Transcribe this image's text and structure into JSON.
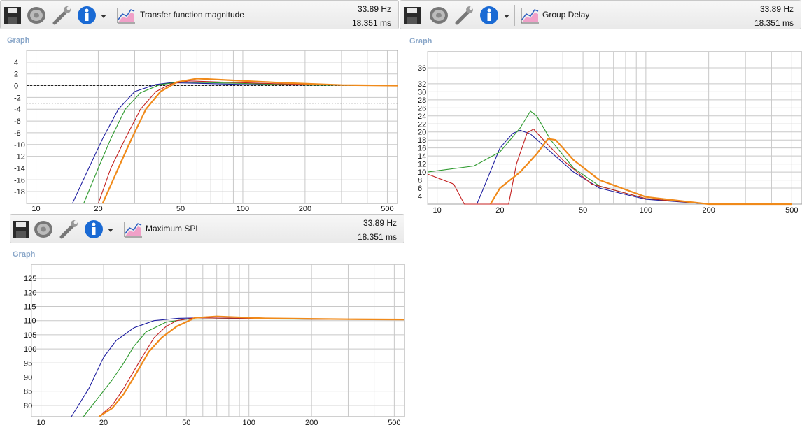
{
  "panels": {
    "transfer": {
      "title": "Transfer function magnitude",
      "freq": "33.89 Hz",
      "time": "18.351 ms",
      "graph_label": "Graph"
    },
    "group_delay": {
      "title": "Group Delay",
      "freq": "33.89 Hz",
      "time": "18.351 ms",
      "graph_label": "Graph"
    },
    "max_spl": {
      "title": "Maximum SPL",
      "freq": "33.89 Hz",
      "time": "18.351 ms",
      "graph_label": "Graph"
    }
  },
  "colors": {
    "blue": "#1f1fa0",
    "green": "#2e9a2e",
    "red": "#c42020",
    "orange": "#f08a1a",
    "grid": "#c8c8c8"
  },
  "icons": [
    "save-icon",
    "speaker-icon",
    "wrench-icon",
    "info-icon",
    "dropdown-icon",
    "chart-icon"
  ],
  "chart_data": [
    {
      "type": "line",
      "name": "transfer",
      "xlog": true,
      "xlim": [
        9,
        560
      ],
      "ylim": [
        -20,
        6
      ],
      "x_ticks": [
        10,
        20,
        50,
        100,
        200,
        500
      ],
      "y_ticks": [
        4,
        2,
        0,
        -2,
        -4,
        -6,
        -8,
        -10,
        -12,
        -14,
        -16,
        -18
      ],
      "ref_lines": [
        0,
        -3
      ],
      "series": [
        {
          "color": "blue",
          "points": [
            [
              15,
              -20
            ],
            [
              18,
              -14
            ],
            [
              21,
              -9
            ],
            [
              25,
              -4
            ],
            [
              30,
              -1
            ],
            [
              38,
              0.2
            ],
            [
              45,
              0.5
            ],
            [
              60,
              0.4
            ],
            [
              100,
              0.2
            ],
            [
              200,
              0.1
            ],
            [
              500,
              0
            ]
          ]
        },
        {
          "color": "green",
          "points": [
            [
              17,
              -20
            ],
            [
              20,
              -14
            ],
            [
              23,
              -9
            ],
            [
              27,
              -4
            ],
            [
              32,
              -1.2
            ],
            [
              40,
              0.2
            ],
            [
              50,
              0.6
            ],
            [
              70,
              0.5
            ],
            [
              120,
              0.3
            ],
            [
              200,
              0.1
            ],
            [
              500,
              0
            ]
          ]
        },
        {
          "color": "red",
          "points": [
            [
              20,
              -20
            ],
            [
              23,
              -14
            ],
            [
              27,
              -9
            ],
            [
              32,
              -4
            ],
            [
              38,
              -1
            ],
            [
              45,
              0.3
            ],
            [
              55,
              0.8
            ],
            [
              80,
              0.6
            ],
            [
              150,
              0.3
            ],
            [
              300,
              0.1
            ],
            [
              500,
              0
            ]
          ]
        },
        {
          "color": "orange",
          "points": [
            [
              21,
              -20
            ],
            [
              25,
              -14
            ],
            [
              29,
              -9
            ],
            [
              34,
              -4
            ],
            [
              40,
              -1
            ],
            [
              48,
              0.6
            ],
            [
              60,
              1.2
            ],
            [
              90,
              0.9
            ],
            [
              150,
              0.5
            ],
            [
              300,
              0.1
            ],
            [
              560,
              0
            ]
          ]
        }
      ]
    },
    {
      "type": "line",
      "name": "group_delay",
      "xlog": true,
      "xlim": [
        9,
        560
      ],
      "ylim": [
        2,
        40
      ],
      "x_ticks": [
        10,
        20,
        50,
        100,
        200,
        500
      ],
      "y_ticks": [
        4,
        6,
        8,
        10,
        12,
        14,
        16,
        18,
        20,
        22,
        24,
        26,
        28,
        30,
        32,
        36
      ],
      "series": [
        {
          "color": "blue",
          "points": [
            [
              15.5,
              0
            ],
            [
              17,
              7
            ],
            [
              20,
              16
            ],
            [
              23,
              19.6
            ],
            [
              25,
              20.4
            ],
            [
              28,
              19.5
            ],
            [
              35,
              15
            ],
            [
              45,
              10
            ],
            [
              60,
              6
            ],
            [
              100,
              3.2
            ],
            [
              200,
              1.8
            ],
            [
              500,
              1.5
            ]
          ]
        },
        {
          "color": "green",
          "points": [
            [
              9,
              10
            ],
            [
              15,
              11.5
            ],
            [
              20,
              15
            ],
            [
              25,
              21
            ],
            [
              28,
              25.2
            ],
            [
              30,
              24
            ],
            [
              35,
              18
            ],
            [
              45,
              11
            ],
            [
              60,
              6.5
            ],
            [
              100,
              3.4
            ],
            [
              200,
              1.9
            ],
            [
              500,
              1.5
            ]
          ]
        },
        {
          "color": "red",
          "points": [
            [
              9,
              9.5
            ],
            [
              12,
              7
            ],
            [
              13.5,
              0
            ],
            [
              22,
              0
            ],
            [
              24,
              12
            ],
            [
              27,
              19.8
            ],
            [
              29,
              20.7
            ],
            [
              33,
              17.5
            ],
            [
              40,
              13
            ],
            [
              55,
              7
            ],
            [
              100,
              3.4
            ],
            [
              200,
              1.9
            ],
            [
              500,
              1.5
            ]
          ]
        },
        {
          "color": "orange",
          "points": [
            [
              18,
              0
            ],
            [
              20,
              6
            ],
            [
              25,
              10
            ],
            [
              30,
              14.5
            ],
            [
              34,
              18.3
            ],
            [
              37,
              18
            ],
            [
              45,
              13
            ],
            [
              60,
              8
            ],
            [
              100,
              3.8
            ],
            [
              200,
              2
            ],
            [
              500,
              1.5
            ]
          ]
        }
      ]
    },
    {
      "type": "line",
      "name": "max_spl",
      "xlog": true,
      "xlim": [
        9,
        560
      ],
      "ylim": [
        76,
        130
      ],
      "x_ticks": [
        10,
        20,
        50,
        100,
        200,
        500
      ],
      "y_ticks": [
        125,
        120,
        115,
        110,
        105,
        100,
        95,
        90,
        85,
        80
      ],
      "series": [
        {
          "color": "blue",
          "points": [
            [
              14,
              72
            ],
            [
              17,
              86
            ],
            [
              20,
              97
            ],
            [
              23,
              103
            ],
            [
              28,
              107.5
            ],
            [
              35,
              110
            ],
            [
              45,
              110.8
            ],
            [
              60,
              111
            ],
            [
              100,
              110.7
            ],
            [
              200,
              110.5
            ],
            [
              560,
              110.4
            ]
          ]
        },
        {
          "color": "green",
          "points": [
            [
              16,
              73
            ],
            [
              19,
              83
            ],
            [
              22,
              89
            ],
            [
              25,
              95
            ],
            [
              28,
              101
            ],
            [
              32,
              106
            ],
            [
              40,
              109.5
            ],
            [
              50,
              110.5
            ],
            [
              80,
              110.6
            ],
            [
              200,
              110.5
            ],
            [
              560,
              110.4
            ]
          ]
        },
        {
          "color": "red",
          "points": [
            [
              19,
              76
            ],
            [
              22,
              80
            ],
            [
              25,
              86
            ],
            [
              30,
              96
            ],
            [
              35,
              104
            ],
            [
              40,
              108
            ],
            [
              45,
              110
            ],
            [
              55,
              111
            ],
            [
              100,
              110.8
            ],
            [
              200,
              110.5
            ],
            [
              560,
              110.4
            ]
          ]
        },
        {
          "color": "orange",
          "points": [
            [
              19,
              74
            ],
            [
              22,
              79
            ],
            [
              25,
              84
            ],
            [
              28,
              90
            ],
            [
              33,
              99
            ],
            [
              38,
              104
            ],
            [
              45,
              108
            ],
            [
              55,
              111
            ],
            [
              70,
              111.5
            ],
            [
              120,
              110.8
            ],
            [
              300,
              110.5
            ],
            [
              560,
              110.4
            ]
          ]
        }
      ]
    }
  ]
}
